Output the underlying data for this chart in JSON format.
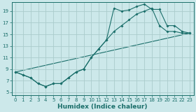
{
  "xlabel": "Humidex (Indice chaleur)",
  "bg_color": "#cce8ea",
  "grid_color": "#aacccc",
  "line_color": "#1a6e6a",
  "xlim": [
    -0.5,
    23.5
  ],
  "ylim": [
    4.5,
    20.5
  ],
  "xticks": [
    0,
    1,
    2,
    3,
    4,
    5,
    6,
    7,
    8,
    9,
    10,
    11,
    12,
    13,
    14,
    15,
    16,
    17,
    18,
    19,
    20,
    21,
    22,
    23
  ],
  "yticks": [
    5,
    7,
    9,
    11,
    13,
    15,
    17,
    19
  ],
  "line1_x": [
    0,
    1,
    2,
    3,
    4,
    5,
    6,
    7,
    8,
    9,
    10,
    11,
    12,
    13,
    14,
    15,
    16,
    17,
    18,
    19,
    20,
    21,
    22,
    23
  ],
  "line1_y": [
    8.5,
    8.0,
    7.5,
    6.5,
    6.0,
    6.5,
    6.5,
    7.5,
    8.5,
    9.0,
    11.0,
    12.5,
    14.0,
    19.5,
    19.0,
    19.2,
    19.8,
    20.2,
    19.3,
    19.3,
    16.5,
    16.5,
    15.5,
    15.2
  ],
  "line2_x": [
    0,
    1,
    2,
    3,
    4,
    5,
    6,
    7,
    8,
    9,
    10,
    11,
    12,
    13,
    14,
    15,
    16,
    17,
    18,
    19,
    20,
    21,
    22,
    23
  ],
  "line2_y": [
    8.5,
    8.0,
    7.5,
    6.5,
    6.0,
    6.5,
    6.5,
    7.5,
    8.5,
    9.0,
    11.0,
    12.5,
    14.0,
    15.5,
    16.5,
    17.5,
    18.5,
    19.0,
    19.5,
    16.5,
    15.5,
    15.5,
    15.2,
    15.2
  ],
  "line3_x": [
    0,
    23
  ],
  "line3_y": [
    8.5,
    15.2
  ]
}
